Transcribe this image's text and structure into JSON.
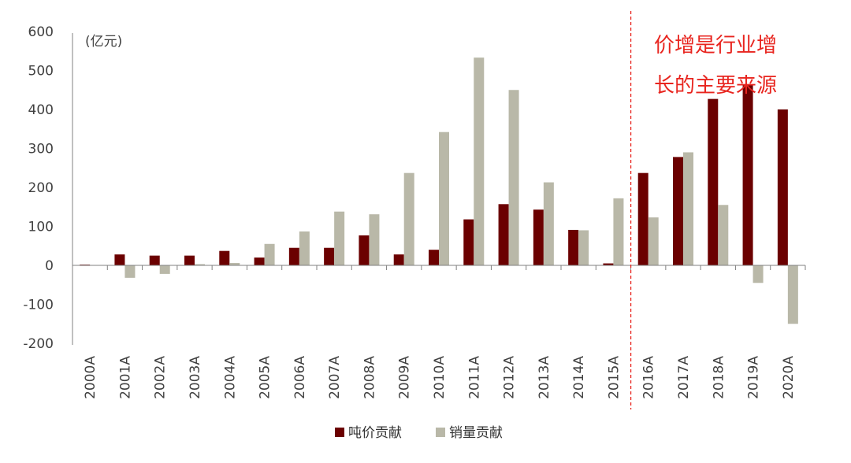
{
  "chart_data": {
    "type": "bar",
    "unit_label": "(亿元)",
    "categories": [
      "2000A",
      "2001A",
      "2002A",
      "2003A",
      "2004A",
      "2005A",
      "2006A",
      "2007A",
      "2008A",
      "2009A",
      "2010A",
      "2011A",
      "2012A",
      "2013A",
      "2014A",
      "2015A",
      "2016A",
      "2017A",
      "2018A",
      "2019A",
      "2020A"
    ],
    "series": [
      {
        "name": "吨价贡献",
        "color": "#6b0000",
        "values": [
          2,
          28,
          25,
          25,
          37,
          20,
          45,
          45,
          77,
          28,
          40,
          118,
          157,
          143,
          91,
          5,
          237,
          278,
          427,
          463,
          400
        ]
      },
      {
        "name": "销量贡献",
        "color": "#b9b8a8",
        "values": [
          1,
          -32,
          -22,
          3,
          6,
          55,
          87,
          138,
          131,
          237,
          342,
          533,
          450,
          213,
          90,
          172,
          123,
          290,
          155,
          -45,
          -150
        ]
      }
    ],
    "ylim": [
      -200,
      600
    ],
    "yticks": [
      -200,
      -100,
      0,
      100,
      200,
      300,
      400,
      500,
      600
    ],
    "divider_after_category": "2015A",
    "annotation": [
      "价增是行业增",
      "长的主要来源"
    ],
    "legend_position": "bottom",
    "grid": false
  }
}
